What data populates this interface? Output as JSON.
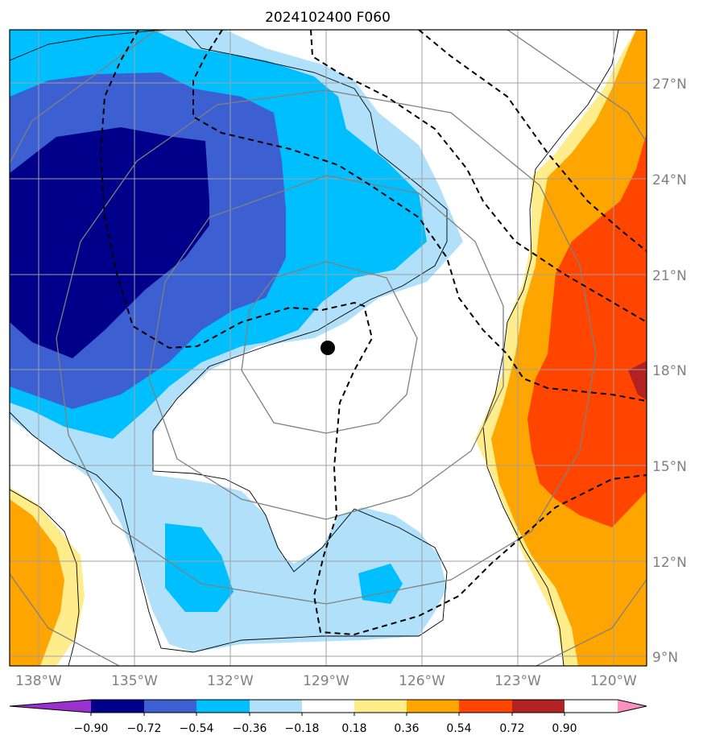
{
  "map": {
    "title": "2024102400 F060",
    "lat_labels": [
      "27°N",
      "24°N",
      "21°N",
      "18°N",
      "15°N",
      "12°N",
      "9°N"
    ],
    "lon_labels": [
      "138°W",
      "135°W",
      "132°W",
      "129°W",
      "126°W",
      "123°W",
      "120°W"
    ],
    "center_marker": "storm-center"
  },
  "colorbar": {
    "tick_labels": [
      "−0.90",
      "−0.72",
      "−0.54",
      "−0.36",
      "−0.18",
      "0.18",
      "0.36",
      "0.54",
      "0.72",
      "0.90"
    ],
    "colors": [
      "#9932cc",
      "#00008b",
      "#3c5fd2",
      "#00bfff",
      "#b0e0fa",
      "#ffffff",
      "#ffec8b",
      "#ffa500",
      "#ff4500",
      "#b22222",
      "#ff8fbf"
    ]
  }
}
